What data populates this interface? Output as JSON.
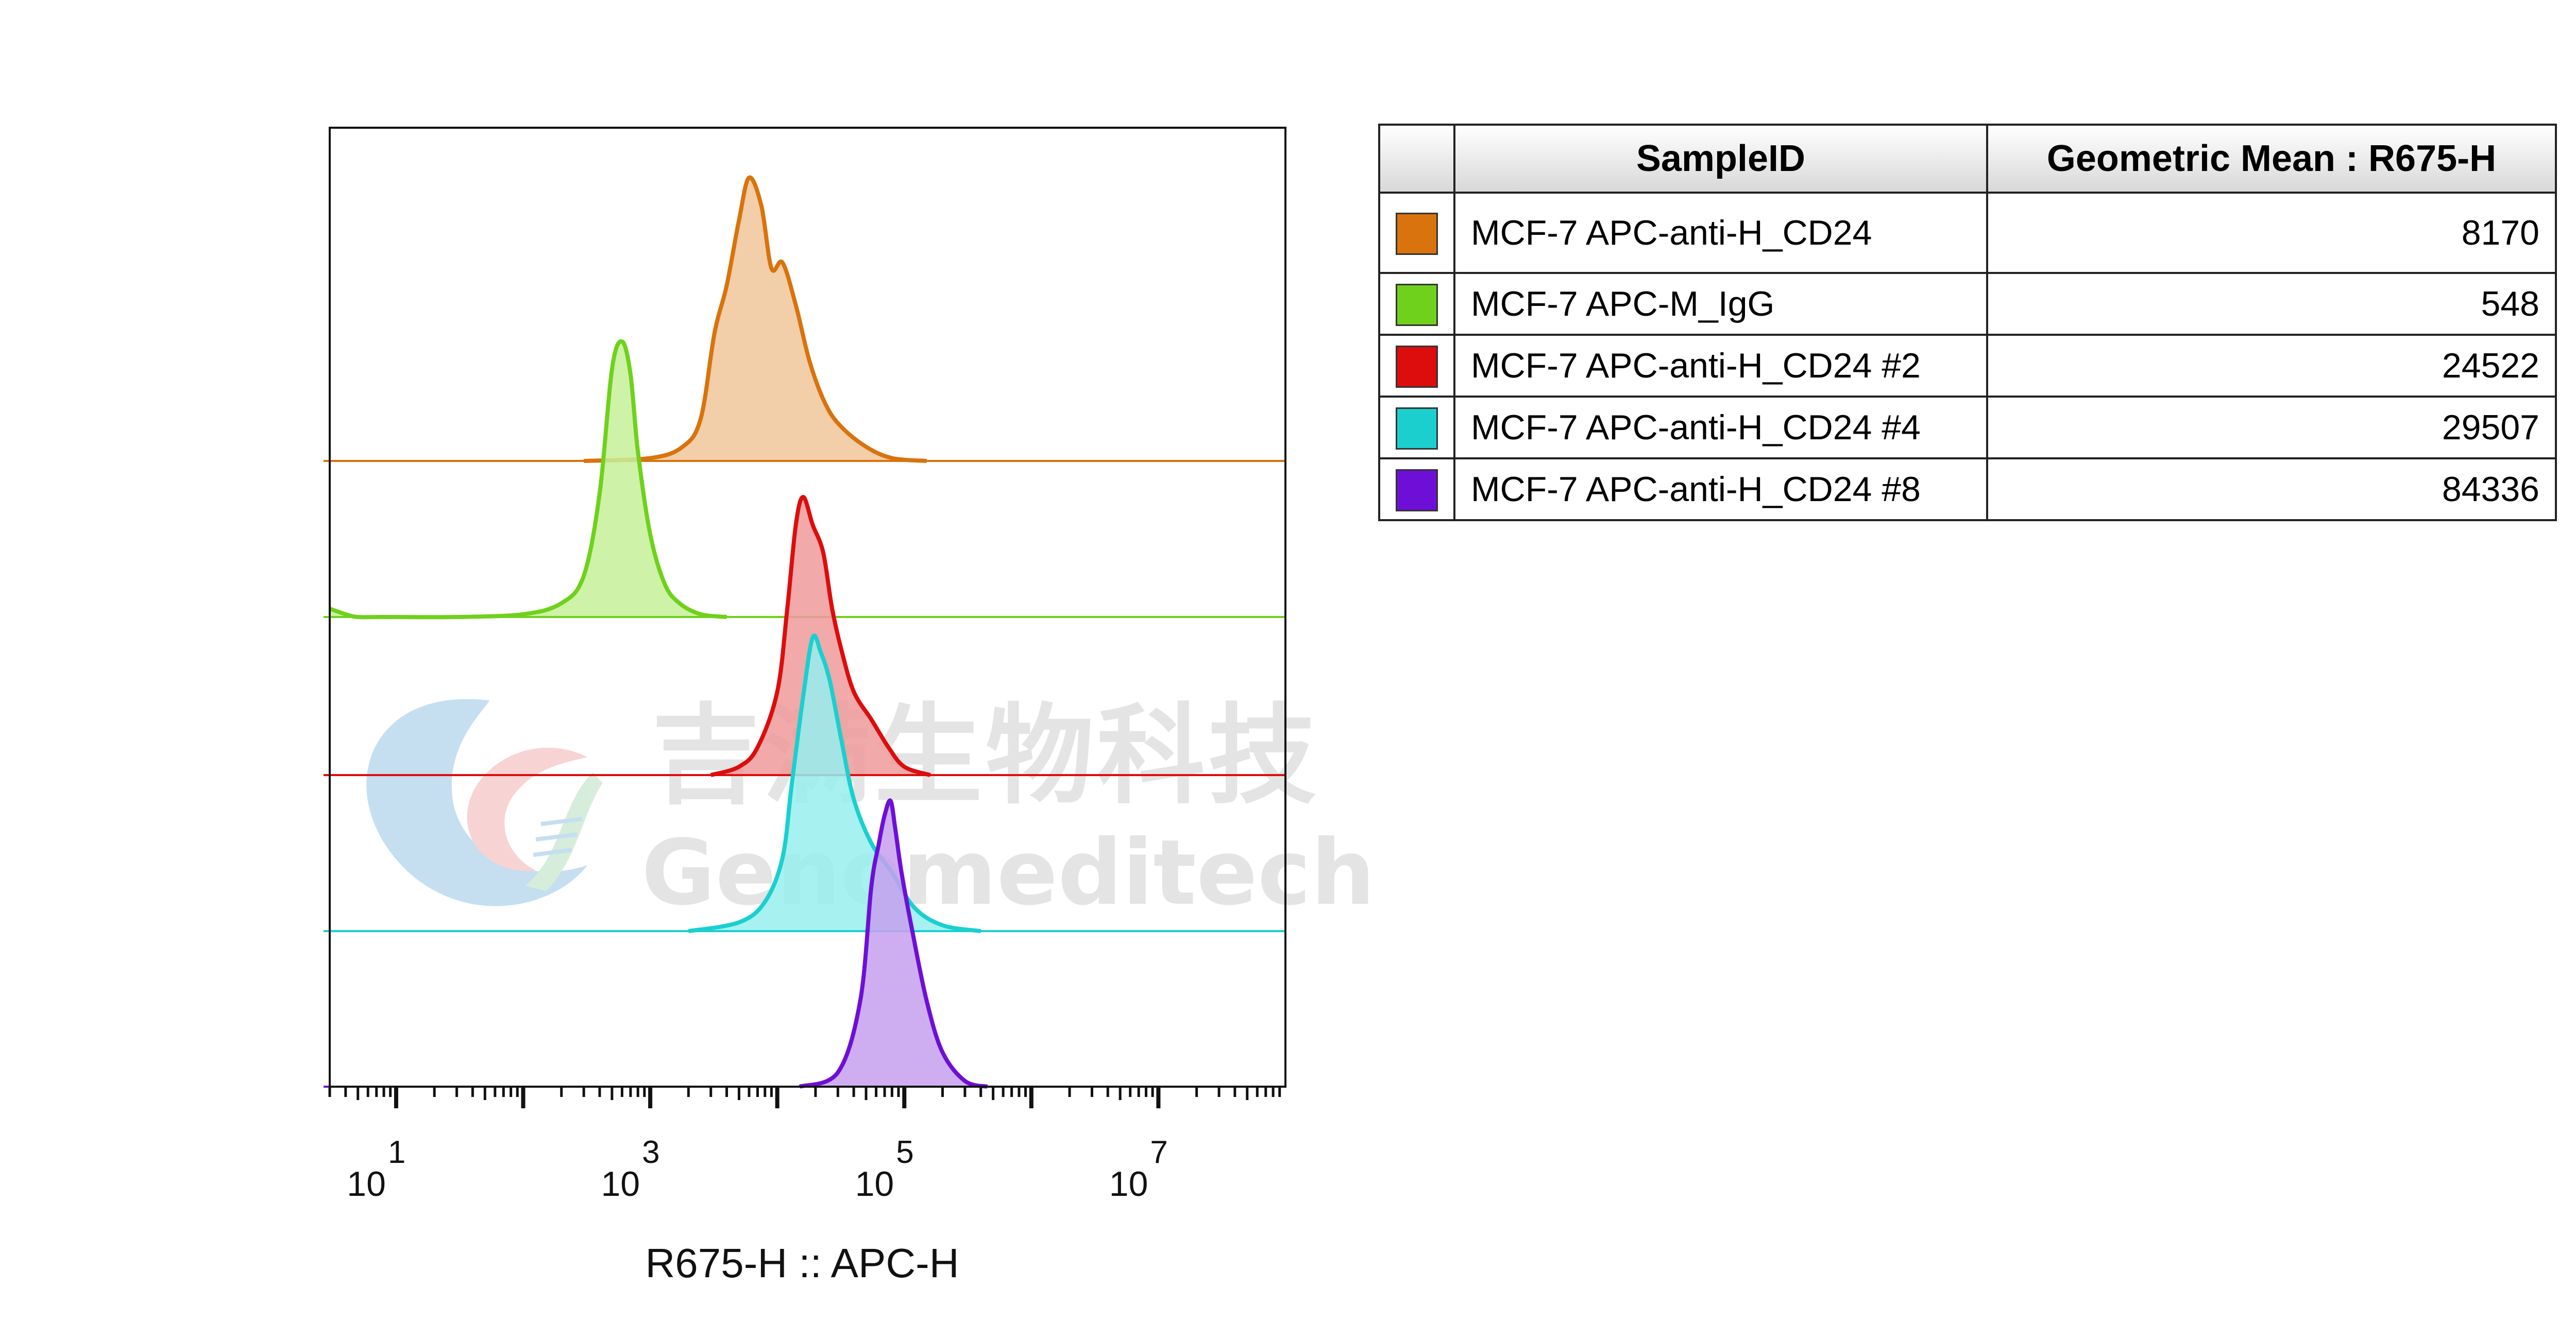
{
  "chart_data": {
    "type": "area",
    "xlabel": "R675-H :: APC-H",
    "x_scale": "log",
    "xlim": [
      3,
      100000000
    ],
    "x_ticks": [
      {
        "base": "10",
        "exp": "1",
        "value": 10
      },
      {
        "base": "10",
        "exp": "3",
        "value": 1000
      },
      {
        "base": "10",
        "exp": "5",
        "value": 100000
      },
      {
        "base": "10",
        "exp": "7",
        "value": 10000000
      }
    ],
    "series": [
      {
        "name": "MCF-7 APC-anti-H_CD24",
        "color": "#d9730d",
        "fill": "#f0c59a",
        "x": [
          300,
          1000,
          1800,
          2500,
          3200,
          4000,
          5000,
          6000,
          7500,
          9000,
          11000,
          14000,
          18000,
          24000,
          32000,
          50000,
          80000,
          150000
        ],
        "y": [
          0,
          0.01,
          0.05,
          0.15,
          0.45,
          0.62,
          0.85,
          1.0,
          0.9,
          0.68,
          0.7,
          0.55,
          0.35,
          0.2,
          0.12,
          0.05,
          0.01,
          0
        ]
      },
      {
        "name": "MCF-7 APC-M_IgG",
        "color": "#6fd11c",
        "fill": "#c6f098",
        "x": [
          3,
          4,
          5,
          8,
          30,
          100,
          200,
          300,
          400,
          500,
          600,
          700,
          800,
          1000,
          1300,
          1700,
          2500,
          4000
        ],
        "y": [
          0.03,
          0.01,
          0,
          0,
          0,
          0.01,
          0.05,
          0.15,
          0.45,
          0.9,
          1.0,
          0.88,
          0.6,
          0.3,
          0.12,
          0.05,
          0.01,
          0
        ]
      },
      {
        "name": "MCF-7 APC-anti-H_CD24 #2",
        "color": "#dd0d0d",
        "fill": "#ef9a9a",
        "x": [
          3000,
          5000,
          7000,
          10000,
          12000,
          14000,
          16000,
          19000,
          23000,
          27000,
          32000,
          40000,
          55000,
          75000,
          100000,
          160000
        ],
        "y": [
          0,
          0.03,
          0.1,
          0.3,
          0.6,
          0.9,
          1.0,
          0.9,
          0.8,
          0.6,
          0.45,
          0.3,
          0.2,
          0.1,
          0.03,
          0
        ]
      },
      {
        "name": "MCF-7 APC-anti-H_CD24 #4",
        "color": "#1ccfcf",
        "fill": "#98eeee",
        "x": [
          2000,
          5000,
          8000,
          11000,
          13000,
          16000,
          19000,
          22000,
          26000,
          32000,
          40000,
          55000,
          80000,
          120000,
          200000,
          400000
        ],
        "y": [
          0,
          0.03,
          0.1,
          0.25,
          0.5,
          0.8,
          1.0,
          0.95,
          0.85,
          0.65,
          0.45,
          0.3,
          0.2,
          0.08,
          0.02,
          0
        ]
      },
      {
        "name": "MCF-7 APC-anti-H_CD24 #8",
        "color": "#6e0fd8",
        "fill": "#c6a0ef",
        "x": [
          15000,
          30000,
          45000,
          55000,
          63000,
          70000,
          78000,
          85000,
          95000,
          115000,
          150000,
          200000,
          300000,
          450000
        ],
        "y": [
          0,
          0.05,
          0.3,
          0.7,
          0.85,
          0.95,
          1.0,
          0.9,
          0.75,
          0.55,
          0.3,
          0.12,
          0.02,
          0
        ]
      }
    ]
  },
  "watermark": {
    "cn": "吉满生物科技",
    "en": "Genomeditech"
  },
  "table": {
    "headers": [
      "SampleID",
      "Geometric Mean : R675-H"
    ],
    "rows": [
      {
        "color": "#d9730d",
        "sample": "MCF-7 APC-anti-H_CD24",
        "value": "8170"
      },
      {
        "color": "#6fd11c",
        "sample": "MCF-7 APC-M_IgG",
        "value": "548"
      },
      {
        "color": "#dd0d0d",
        "sample": "MCF-7 APC-anti-H_CD24 #2",
        "value": "24522"
      },
      {
        "color": "#1ccfcf",
        "sample": "MCF-7 APC-anti-H_CD24 #4",
        "value": "29507"
      },
      {
        "color": "#6e0fd8",
        "sample": "MCF-7 APC-anti-H_CD24 #8",
        "value": "84336"
      }
    ]
  }
}
